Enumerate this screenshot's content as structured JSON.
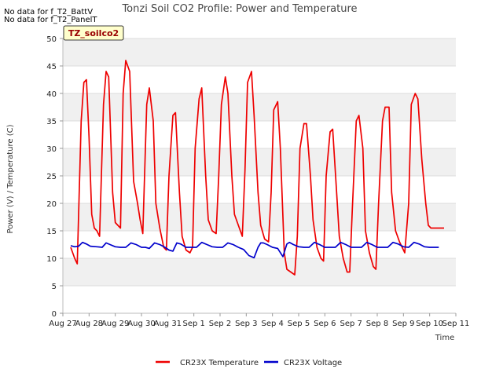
{
  "chart_data": {
    "type": "line",
    "title": "Tonzi Soil CO2 Profile: Power and Temperature",
    "xlabel": "Time",
    "ylabel": "Power (V) / Temperature (C)",
    "no_data_notes": [
      "No data for f_T2_BattV",
      "No data for f_T2_PanelT"
    ],
    "site_label": "TZ_soilco2",
    "xlim": [
      0,
      15
    ],
    "ylim": [
      0,
      50
    ],
    "x_ticks": [
      {
        "value": 0,
        "label": "Aug 27"
      },
      {
        "value": 1,
        "label": "Aug 28"
      },
      {
        "value": 2,
        "label": "Aug 29"
      },
      {
        "value": 3,
        "label": "Aug 30"
      },
      {
        "value": 4,
        "label": "Aug 31"
      },
      {
        "value": 5,
        "label": "Sep 1"
      },
      {
        "value": 6,
        "label": "Sep 2"
      },
      {
        "value": 7,
        "label": "Sep 3"
      },
      {
        "value": 8,
        "label": "Sep 4"
      },
      {
        "value": 9,
        "label": "Sep 5"
      },
      {
        "value": 10,
        "label": "Sep 6"
      },
      {
        "value": 11,
        "label": "Sep 7"
      },
      {
        "value": 12,
        "label": "Sep 8"
      },
      {
        "value": 13,
        "label": "Sep 9"
      },
      {
        "value": 14,
        "label": "Sep 10"
      },
      {
        "value": 15,
        "label": "Sep 11"
      }
    ],
    "y_ticks": [
      0,
      5,
      10,
      15,
      20,
      25,
      30,
      35,
      40,
      45,
      50
    ],
    "series": [
      {
        "name": "CR23X Temperature",
        "color": "#ee0000",
        "x": [
          0.3,
          0.45,
          0.55,
          0.7,
          0.8,
          0.9,
          1.0,
          1.1,
          1.2,
          1.3,
          1.4,
          1.55,
          1.65,
          1.75,
          1.9,
          2.0,
          2.1,
          2.2,
          2.3,
          2.4,
          2.55,
          2.7,
          2.85,
          2.95,
          3.05,
          3.2,
          3.3,
          3.45,
          3.55,
          3.7,
          3.85,
          3.95,
          4.05,
          4.2,
          4.3,
          4.45,
          4.55,
          4.7,
          4.85,
          4.95,
          5.05,
          5.2,
          5.3,
          5.45,
          5.55,
          5.7,
          5.85,
          5.95,
          6.05,
          6.2,
          6.3,
          6.45,
          6.55,
          6.7,
          6.85,
          6.95,
          7.05,
          7.2,
          7.3,
          7.45,
          7.55,
          7.7,
          7.85,
          7.95,
          8.05,
          8.2,
          8.3,
          8.45,
          8.55,
          8.7,
          8.85,
          8.95,
          9.05,
          9.2,
          9.3,
          9.45,
          9.55,
          9.7,
          9.85,
          9.95,
          10.05,
          10.2,
          10.3,
          10.45,
          10.55,
          10.7,
          10.85,
          10.95,
          11.05,
          11.2,
          11.3,
          11.45,
          11.55,
          11.7,
          11.85,
          11.95,
          12.05,
          12.2,
          12.3,
          12.45,
          12.55,
          12.7,
          12.85,
          12.95,
          13.05,
          13.2,
          13.3,
          13.45,
          13.55,
          13.7,
          13.85,
          13.95,
          14.05,
          14.2,
          14.3,
          14.45,
          14.55
        ],
        "values": [
          12.0,
          10.0,
          9.0,
          35.0,
          42.0,
          42.5,
          32.0,
          18.0,
          15.5,
          15.0,
          14.0,
          38.0,
          44.0,
          43.0,
          22.0,
          16.5,
          16.0,
          15.5,
          40.0,
          46.0,
          44.0,
          24.0,
          20.0,
          17.0,
          14.5,
          38.0,
          41.0,
          35.0,
          20.0,
          15.5,
          12.0,
          11.5,
          25.0,
          36.0,
          36.5,
          22.0,
          14.0,
          11.5,
          11.0,
          12.0,
          30.0,
          39.0,
          41.0,
          25.0,
          17.0,
          15.0,
          14.5,
          25.0,
          38.0,
          43.0,
          40.0,
          25.0,
          18.0,
          16.0,
          14.0,
          26.0,
          42.0,
          44.0,
          36.0,
          22.0,
          16.0,
          13.5,
          13.0,
          22.0,
          37.0,
          38.5,
          30.0,
          11.0,
          8.0,
          7.5,
          7.0,
          14.0,
          30.0,
          34.5,
          34.5,
          25.0,
          17.0,
          12.0,
          10.0,
          9.5,
          25.0,
          33.0,
          33.5,
          22.0,
          14.0,
          10.0,
          7.5,
          7.5,
          19.0,
          35.0,
          36.0,
          30.0,
          15.0,
          11.0,
          8.5,
          8.0,
          20.0,
          35.0,
          37.5,
          37.5,
          22.0,
          15.0,
          13.0,
          12.0,
          11.0,
          20.0,
          38.0,
          40.0,
          39.0,
          28.0,
          20.0,
          16.0,
          15.5,
          15.5,
          15.5,
          15.5,
          15.5
        ],
        "x_end": 14.3
      },
      {
        "name": "CR23X Voltage",
        "color": "#0000cc",
        "x": [
          0.3,
          0.45,
          0.6,
          0.75,
          0.9,
          1.05,
          1.3,
          1.5,
          1.65,
          1.8,
          2.0,
          2.2,
          2.4,
          2.6,
          2.8,
          3.0,
          3.15,
          3.3,
          3.5,
          3.7,
          3.9,
          4.05,
          4.2,
          4.35,
          4.5,
          4.7,
          4.9,
          5.1,
          5.3,
          5.5,
          5.7,
          5.9,
          6.1,
          6.3,
          6.5,
          6.7,
          6.9,
          7.1,
          7.3,
          7.45,
          7.55,
          7.65,
          7.8,
          8.0,
          8.2,
          8.4,
          8.55,
          8.65,
          8.8,
          9.0,
          9.2,
          9.4,
          9.6,
          9.8,
          10.0,
          10.2,
          10.4,
          10.6,
          10.8,
          11.0,
          11.2,
          11.4,
          11.6,
          11.8,
          12.0,
          12.2,
          12.4,
          12.6,
          12.8,
          13.0,
          13.2,
          13.4,
          13.6,
          13.8,
          14.0,
          14.2,
          14.35
        ],
        "values": [
          12.3,
          12.1,
          12.2,
          12.9,
          12.6,
          12.2,
          12.1,
          12.0,
          12.8,
          12.5,
          12.1,
          12.0,
          12.0,
          12.8,
          12.5,
          12.0,
          12.0,
          11.8,
          12.8,
          12.5,
          12.0,
          11.5,
          11.3,
          12.8,
          12.6,
          12.0,
          12.0,
          12.0,
          12.9,
          12.5,
          12.1,
          12.0,
          12.0,
          12.8,
          12.5,
          12.0,
          11.6,
          10.5,
          10.1,
          12.0,
          12.8,
          12.8,
          12.5,
          12.0,
          11.8,
          10.3,
          12.6,
          12.9,
          12.5,
          12.1,
          12.0,
          12.0,
          12.9,
          12.5,
          12.0,
          12.0,
          12.0,
          12.9,
          12.5,
          12.0,
          12.0,
          12.0,
          12.9,
          12.5,
          12.0,
          12.0,
          12.0,
          12.9,
          12.6,
          12.1,
          12.0,
          12.9,
          12.6,
          12.1,
          12.0,
          12.0,
          12.0
        ]
      }
    ]
  }
}
